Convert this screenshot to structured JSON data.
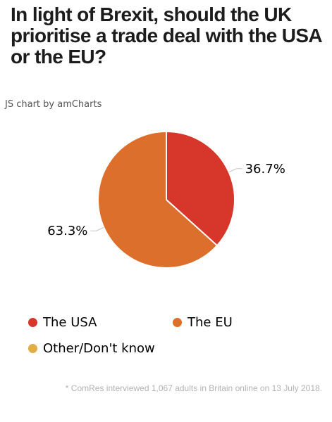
{
  "title": "In light of Brexit, should the UK prioritise a trade deal with the USA or the EU?",
  "credit": "JS chart by amCharts",
  "footnote": "* ComRes interviewed 1,067 adults in Britain online on 13 July 2018.",
  "chart_data": {
    "type": "pie",
    "title": "In light of Brexit, should the UK prioritise a trade deal with the USA or the EU?",
    "categories": [
      "The USA",
      "The EU",
      "Other/Don't know"
    ],
    "values": [
      36.7,
      63.3,
      0
    ],
    "labels": [
      "36.7%",
      "63.3%",
      ""
    ],
    "colors": [
      "#d7372a",
      "#dd6f2c",
      "#e3ad45"
    ],
    "legend_position": "bottom",
    "start_angle_deg": -90,
    "direction": "clockwise"
  }
}
